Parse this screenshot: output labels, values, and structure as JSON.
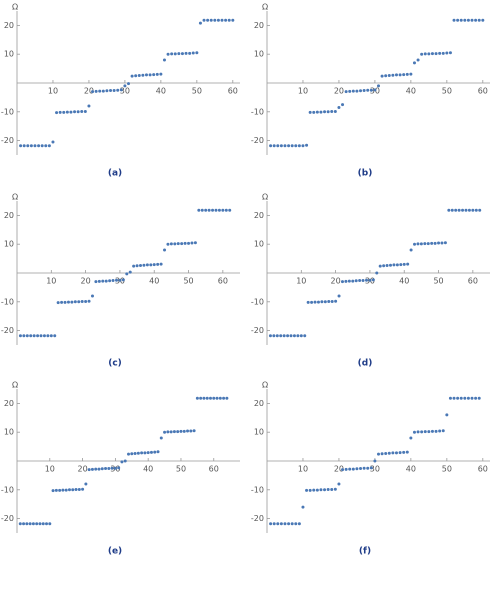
{
  "chart_data": [
    {
      "type": "scatter",
      "label": "(a)",
      "ylabel": "Ω",
      "color": "#4a78b5",
      "x": [
        1,
        2,
        3,
        4,
        5,
        6,
        7,
        8,
        9,
        10,
        11,
        12,
        13,
        14,
        15,
        16,
        17,
        18,
        19,
        20,
        21,
        22,
        23,
        24,
        25,
        26,
        27,
        28,
        29,
        30,
        31,
        32,
        33,
        34,
        35,
        36,
        37,
        38,
        39,
        40,
        41,
        42,
        43,
        44,
        45,
        46,
        47,
        48,
        49,
        50,
        51,
        52,
        53,
        54,
        55,
        56,
        57,
        58,
        59,
        60
      ],
      "values": [
        -21.8,
        -21.8,
        -21.8,
        -21.8,
        -21.8,
        -21.8,
        -21.8,
        -21.8,
        -21.8,
        -20.5,
        -10.3,
        -10.2,
        -10.2,
        -10.1,
        -10.1,
        -10.0,
        -10.0,
        -9.9,
        -9.9,
        -8.0,
        -3.0,
        -2.9,
        -2.8,
        -2.8,
        -2.7,
        -2.6,
        -2.6,
        -2.5,
        -2.4,
        -1.0,
        -0.2,
        2.4,
        2.5,
        2.6,
        2.7,
        2.8,
        2.8,
        2.9,
        3.0,
        3.1,
        8.0,
        10.0,
        10.1,
        10.1,
        10.2,
        10.2,
        10.3,
        10.3,
        10.4,
        10.5,
        20.8,
        21.8,
        21.8,
        21.8,
        21.8,
        21.8,
        21.8,
        21.8,
        21.8,
        21.8
      ],
      "xlim": [
        0,
        62
      ],
      "ylim": [
        -25,
        25
      ],
      "xticks": [
        10,
        20,
        30,
        40,
        50,
        60
      ],
      "yticks": [
        -20,
        -10,
        10,
        20
      ]
    },
    {
      "type": "scatter",
      "label": "(b)",
      "ylabel": "Ω",
      "color": "#4a78b5",
      "x": [
        1,
        2,
        3,
        4,
        5,
        6,
        7,
        8,
        9,
        10,
        11,
        12,
        13,
        14,
        15,
        16,
        17,
        18,
        19,
        20,
        21,
        22,
        23,
        24,
        25,
        26,
        27,
        28,
        29,
        30,
        31,
        32,
        33,
        34,
        35,
        36,
        37,
        38,
        39,
        40,
        41,
        42,
        43,
        44,
        45,
        46,
        47,
        48,
        49,
        50,
        51,
        52,
        53,
        54,
        55,
        56,
        57,
        58,
        59,
        60
      ],
      "values": [
        -21.8,
        -21.8,
        -21.8,
        -21.8,
        -21.8,
        -21.8,
        -21.8,
        -21.8,
        -21.8,
        -21.8,
        -21.6,
        -10.2,
        -10.2,
        -10.1,
        -10.1,
        -10.0,
        -10.0,
        -9.9,
        -9.9,
        -8.5,
        -7.5,
        -3.0,
        -2.9,
        -2.8,
        -2.8,
        -2.7,
        -2.6,
        -2.5,
        -2.5,
        -2.4,
        -1.0,
        2.4,
        2.5,
        2.6,
        2.7,
        2.8,
        2.8,
        2.9,
        3.0,
        3.1,
        7.0,
        8.0,
        10.0,
        10.1,
        10.1,
        10.2,
        10.2,
        10.3,
        10.3,
        10.4,
        10.5,
        21.8,
        21.8,
        21.8,
        21.8,
        21.8,
        21.8,
        21.8,
        21.8,
        21.8
      ],
      "xlim": [
        0,
        62
      ],
      "ylim": [
        -25,
        25
      ],
      "xticks": [
        10,
        20,
        30,
        40,
        50,
        60
      ],
      "yticks": [
        -20,
        -10,
        10,
        20
      ]
    },
    {
      "type": "scatter",
      "label": "(c)",
      "ylabel": "Ω",
      "color": "#4a78b5",
      "x": [
        1,
        2,
        3,
        4,
        5,
        6,
        7,
        8,
        9,
        10,
        11,
        12,
        13,
        14,
        15,
        16,
        17,
        18,
        19,
        20,
        21,
        22,
        23,
        24,
        25,
        26,
        27,
        28,
        29,
        30,
        31,
        32,
        33,
        34,
        35,
        36,
        37,
        38,
        39,
        40,
        41,
        42,
        43,
        44,
        45,
        46,
        47,
        48,
        49,
        50,
        51,
        52,
        53,
        54,
        55,
        56,
        57,
        58,
        59,
        60,
        61,
        62
      ],
      "values": [
        -21.8,
        -21.8,
        -21.8,
        -21.8,
        -21.8,
        -21.8,
        -21.8,
        -21.8,
        -21.8,
        -21.8,
        -21.8,
        -10.3,
        -10.2,
        -10.2,
        -10.1,
        -10.1,
        -10.0,
        -10.0,
        -9.9,
        -9.9,
        -9.8,
        -8.0,
        -3.0,
        -2.9,
        -2.8,
        -2.8,
        -2.7,
        -2.6,
        -2.5,
        -2.5,
        -2.4,
        -0.3,
        0.3,
        2.4,
        2.5,
        2.6,
        2.7,
        2.8,
        2.8,
        2.9,
        3.0,
        3.1,
        8.0,
        10.0,
        10.1,
        10.1,
        10.2,
        10.2,
        10.3,
        10.3,
        10.4,
        10.5,
        21.8,
        21.8,
        21.8,
        21.8,
        21.8,
        21.8,
        21.8,
        21.8,
        21.8,
        21.8
      ],
      "xlim": [
        0,
        65
      ],
      "ylim": [
        -25,
        25
      ],
      "xticks": [
        10,
        20,
        30,
        40,
        50,
        60
      ],
      "yticks": [
        -20,
        -10,
        10,
        20
      ]
    },
    {
      "type": "scatter",
      "label": "(d)",
      "ylabel": "Ω",
      "color": "#4a78b5",
      "x": [
        1,
        2,
        3,
        4,
        5,
        6,
        7,
        8,
        9,
        10,
        11,
        12,
        13,
        14,
        15,
        16,
        17,
        18,
        19,
        20,
        21,
        22,
        23,
        24,
        25,
        26,
        27,
        28,
        29,
        30,
        31,
        32,
        33,
        34,
        35,
        36,
        37,
        38,
        39,
        40,
        41,
        42,
        43,
        44,
        45,
        46,
        47,
        48,
        49,
        50,
        51,
        52,
        53,
        54,
        55,
        56,
        57,
        58,
        59,
        60,
        61,
        62
      ],
      "values": [
        -21.8,
        -21.8,
        -21.8,
        -21.8,
        -21.8,
        -21.8,
        -21.8,
        -21.8,
        -21.8,
        -21.8,
        -21.8,
        -10.2,
        -10.2,
        -10.1,
        -10.1,
        -10.0,
        -10.0,
        -9.9,
        -9.9,
        -9.8,
        -8.0,
        -3.0,
        -2.9,
        -2.8,
        -2.8,
        -2.7,
        -2.6,
        -2.6,
        -2.5,
        -2.5,
        -2.4,
        0.0,
        2.4,
        2.5,
        2.6,
        2.7,
        2.8,
        2.8,
        2.9,
        3.0,
        3.1,
        8.0,
        10.0,
        10.1,
        10.1,
        10.2,
        10.2,
        10.3,
        10.3,
        10.4,
        10.4,
        10.5,
        21.8,
        21.8,
        21.8,
        21.8,
        21.8,
        21.8,
        21.8,
        21.8,
        21.8,
        21.8
      ],
      "xlim": [
        0,
        65
      ],
      "ylim": [
        -25,
        25
      ],
      "xticks": [
        10,
        20,
        30,
        40,
        50,
        60
      ],
      "yticks": [
        -20,
        -10,
        10,
        20
      ]
    },
    {
      "type": "scatter",
      "label": "(e)",
      "ylabel": "Ω",
      "color": "#4a78b5",
      "x": [
        1,
        2,
        3,
        4,
        5,
        6,
        7,
        8,
        9,
        10,
        11,
        12,
        13,
        14,
        15,
        16,
        17,
        18,
        19,
        20,
        21,
        22,
        23,
        24,
        25,
        26,
        27,
        28,
        29,
        30,
        31,
        32,
        33,
        34,
        35,
        36,
        37,
        38,
        39,
        40,
        41,
        42,
        43,
        44,
        45,
        46,
        47,
        48,
        49,
        50,
        51,
        52,
        53,
        54,
        55,
        56,
        57,
        58,
        59,
        60,
        61,
        62,
        63,
        64
      ],
      "values": [
        -21.8,
        -21.8,
        -21.8,
        -21.8,
        -21.8,
        -21.8,
        -21.8,
        -21.8,
        -21.8,
        -21.8,
        -10.3,
        -10.2,
        -10.2,
        -10.1,
        -10.1,
        -10.0,
        -10.0,
        -9.9,
        -9.9,
        -9.8,
        -8.0,
        -3.0,
        -2.9,
        -2.8,
        -2.8,
        -2.7,
        -2.6,
        -2.6,
        -2.5,
        -2.5,
        -2.4,
        -0.3,
        0.0,
        2.4,
        2.5,
        2.6,
        2.7,
        2.8,
        2.8,
        2.9,
        3.0,
        3.1,
        3.2,
        8.0,
        10.0,
        10.1,
        10.1,
        10.2,
        10.2,
        10.3,
        10.3,
        10.4,
        10.4,
        10.5,
        21.8,
        21.8,
        21.8,
        21.8,
        21.8,
        21.8,
        21.8,
        21.8,
        21.8,
        21.8
      ],
      "xlim": [
        0,
        68
      ],
      "ylim": [
        -25,
        25
      ],
      "xticks": [
        10,
        20,
        30,
        40,
        50,
        60
      ],
      "yticks": [
        -20,
        -10,
        10,
        20
      ]
    },
    {
      "type": "scatter",
      "label": "(f)",
      "ylabel": "Ω",
      "color": "#4a78b5",
      "x": [
        1,
        2,
        3,
        4,
        5,
        6,
        7,
        8,
        9,
        10,
        11,
        12,
        13,
        14,
        15,
        16,
        17,
        18,
        19,
        20,
        21,
        22,
        23,
        24,
        25,
        26,
        27,
        28,
        29,
        30,
        31,
        32,
        33,
        34,
        35,
        36,
        37,
        38,
        39,
        40,
        41,
        42,
        43,
        44,
        45,
        46,
        47,
        48,
        49,
        50,
        51,
        52,
        53,
        54,
        55,
        56,
        57,
        58,
        59
      ],
      "values": [
        -21.8,
        -21.8,
        -21.8,
        -21.8,
        -21.8,
        -21.8,
        -21.8,
        -21.8,
        -21.8,
        -16.0,
        -10.2,
        -10.2,
        -10.1,
        -10.1,
        -10.0,
        -10.0,
        -9.9,
        -9.9,
        -9.8,
        -8.0,
        -3.0,
        -2.9,
        -2.8,
        -2.8,
        -2.7,
        -2.6,
        -2.5,
        -2.5,
        -2.4,
        0.0,
        2.4,
        2.5,
        2.6,
        2.7,
        2.8,
        2.8,
        2.9,
        3.0,
        3.1,
        8.0,
        10.0,
        10.1,
        10.1,
        10.2,
        10.2,
        10.3,
        10.3,
        10.4,
        10.5,
        16.0,
        21.8,
        21.8,
        21.8,
        21.8,
        21.8,
        21.8,
        21.8,
        21.8,
        21.8
      ],
      "xlim": [
        0,
        62
      ],
      "ylim": [
        -25,
        25
      ],
      "xticks": [
        10,
        20,
        30,
        40,
        50,
        60
      ],
      "yticks": [
        -20,
        -10,
        10,
        20
      ]
    }
  ]
}
